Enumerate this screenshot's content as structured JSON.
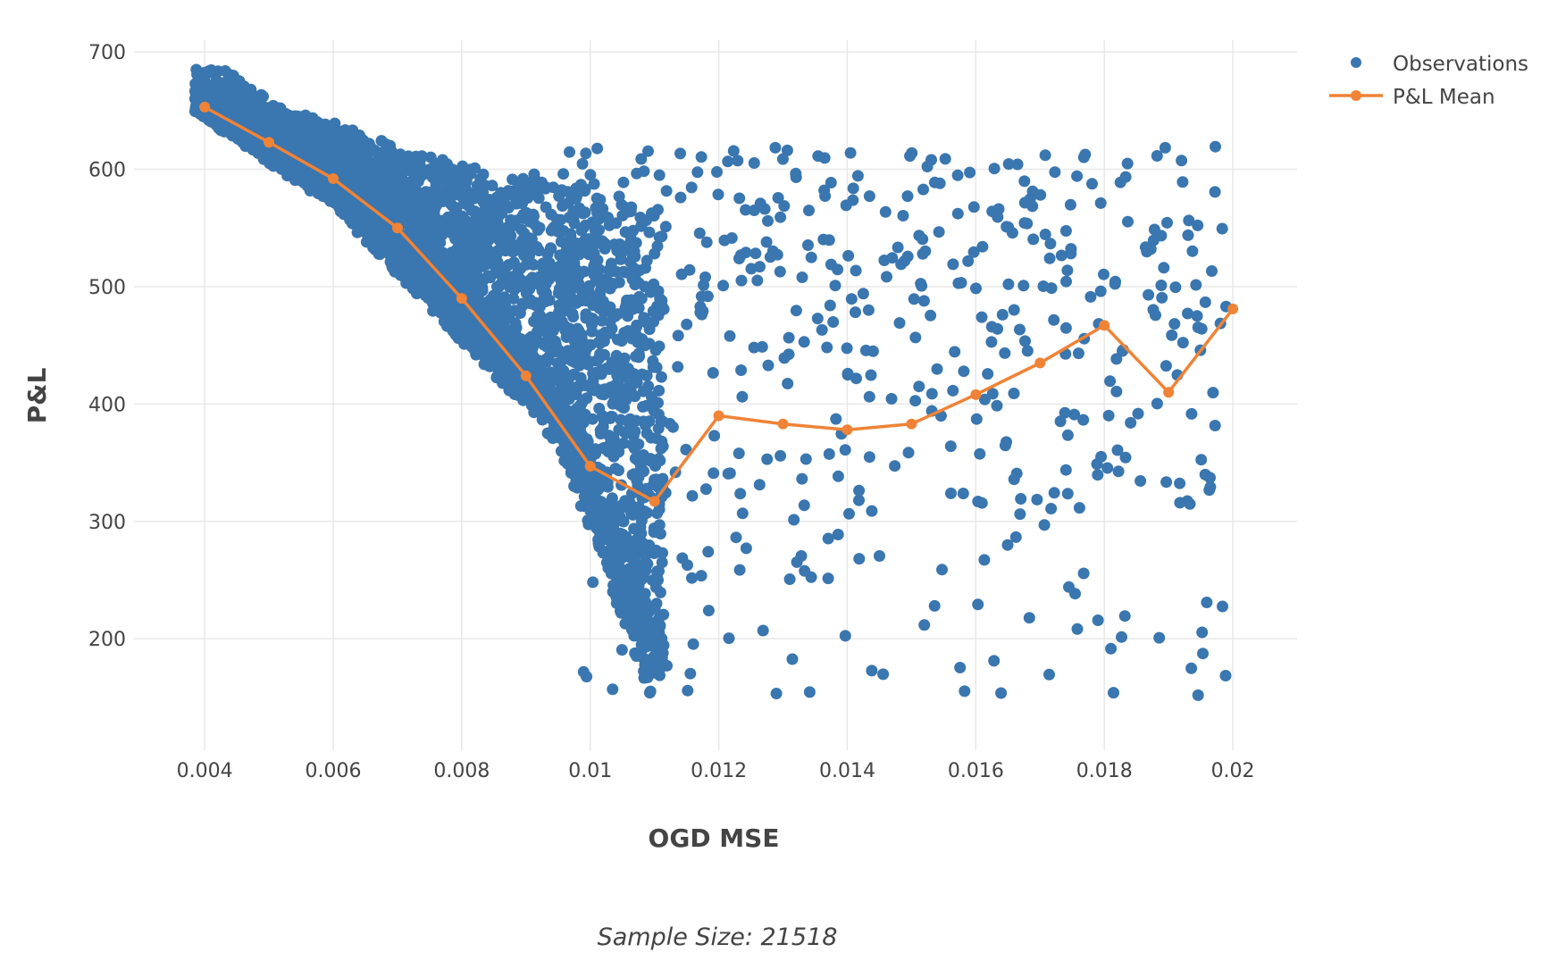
{
  "chart_data": {
    "type": "scatter",
    "xlabel": "OGD MSE",
    "ylabel": "P&L",
    "annotation": "Sample Size: 21518",
    "xlim": [
      0.0029,
      0.021
    ],
    "ylim": [
      105,
      710
    ],
    "x_ticks": [
      0.004,
      0.006,
      0.008,
      0.01,
      0.012,
      0.014,
      0.016,
      0.018,
      0.02
    ],
    "x_tick_labels": [
      "0.004",
      "0.006",
      "0.008",
      "0.01",
      "0.012",
      "0.014",
      "0.016",
      "0.018",
      "0.02"
    ],
    "y_ticks": [
      200,
      300,
      400,
      500,
      600,
      700
    ],
    "y_tick_labels": [
      "200",
      "300",
      "400",
      "500",
      "600",
      "700"
    ],
    "grid": true,
    "legend_position": "top-right",
    "colors": {
      "observations": "#3a76af",
      "mean": "#f08336"
    },
    "series": [
      {
        "name": "Observations",
        "kind": "markers",
        "color": "#3a76af"
      },
      {
        "name": "P&L Mean",
        "kind": "lines+markers",
        "color": "#f08336",
        "x": [
          0.004,
          0.005,
          0.006,
          0.007,
          0.008,
          0.009,
          0.01,
          0.011,
          0.012,
          0.013,
          0.014,
          0.015,
          0.016,
          0.017,
          0.018,
          0.019,
          0.02
        ],
        "y": [
          653,
          623,
          592,
          550,
          490,
          424,
          347,
          317,
          390,
          383,
          378,
          383,
          408,
          435,
          467,
          410,
          481
        ]
      }
    ]
  }
}
